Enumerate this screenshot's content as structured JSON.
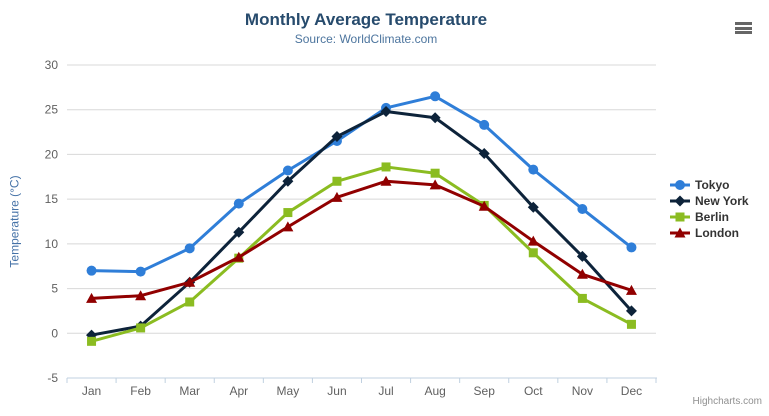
{
  "chart": {
    "title": "Monthly Average Temperature",
    "subtitle": "Source: WorldClimate.com",
    "credit": "Highcharts.com",
    "menu_icon": "hamburger-icon",
    "colors": {
      "title": "#274b6d",
      "subtitle": "#4d759e",
      "axis_title": "#4572a7",
      "axis_labels": "#606060",
      "gridline": "#d8d8d8",
      "axis_line": "#c0d0e0",
      "legend_text": "#333333",
      "credit_text": "#909090"
    }
  },
  "chart_data": {
    "type": "line",
    "title": "Monthly Average Temperature",
    "subtitle": "Source: WorldClimate.com",
    "xlabel": "",
    "ylabel": "Temperature (°C)",
    "categories": [
      "Jan",
      "Feb",
      "Mar",
      "Apr",
      "May",
      "Jun",
      "Jul",
      "Aug",
      "Sep",
      "Oct",
      "Nov",
      "Dec"
    ],
    "series": [
      {
        "name": "Tokyo",
        "color": "#2f7ed8",
        "marker": "circle",
        "values": [
          7.0,
          6.9,
          9.5,
          14.5,
          18.2,
          21.5,
          25.2,
          26.5,
          23.3,
          18.3,
          13.9,
          9.6
        ]
      },
      {
        "name": "New York",
        "color": "#0d233a",
        "marker": "diamond",
        "values": [
          -0.2,
          0.8,
          5.7,
          11.3,
          17.0,
          22.0,
          24.8,
          24.1,
          20.1,
          14.1,
          8.6,
          2.5
        ]
      },
      {
        "name": "Berlin",
        "color": "#8bbc21",
        "marker": "square",
        "values": [
          -0.9,
          0.6,
          3.5,
          8.4,
          13.5,
          17.0,
          18.6,
          17.9,
          14.3,
          9.0,
          3.9,
          1.0
        ]
      },
      {
        "name": "London",
        "color": "#910000",
        "marker": "triangle",
        "values": [
          3.9,
          4.2,
          5.7,
          8.5,
          11.9,
          15.2,
          17.0,
          16.6,
          14.2,
          10.3,
          6.6,
          4.8
        ]
      }
    ],
    "ylim": [
      -5,
      30
    ],
    "y_ticks": [
      -5,
      0,
      5,
      10,
      15,
      20,
      25,
      30
    ],
    "grid": true,
    "legend_position": "right"
  }
}
